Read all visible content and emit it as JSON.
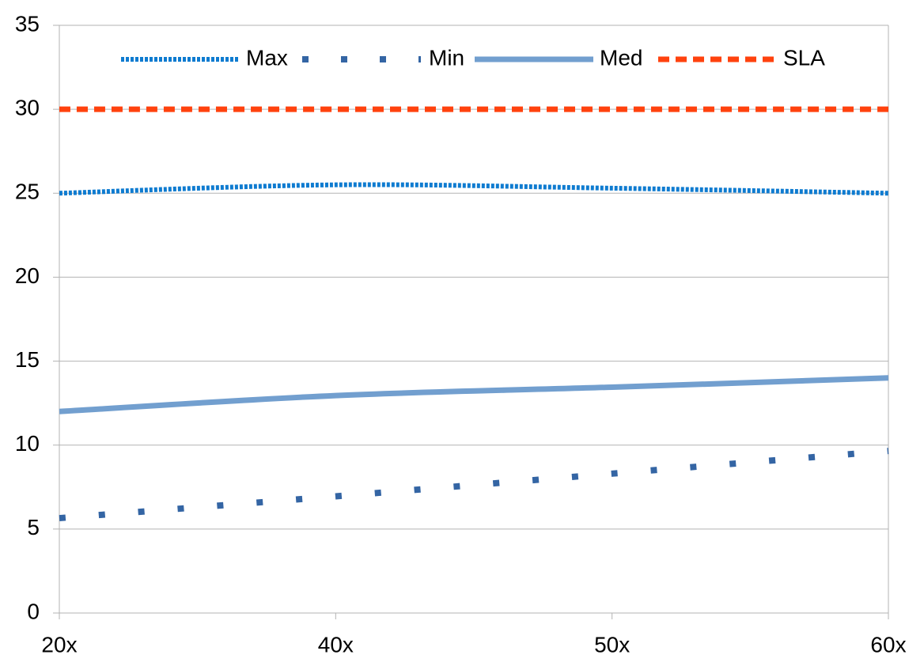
{
  "chart_data": {
    "type": "line",
    "categories": [
      "20x",
      "40x",
      "50x",
      "60x"
    ],
    "series": [
      {
        "name": "Max",
        "color": "#0e7bd0",
        "line_style": "dotted",
        "values": [
          25.0,
          25.5,
          25.3,
          25.0
        ]
      },
      {
        "name": "Min",
        "color": "#3465a4",
        "line_style": "sparse-dot",
        "values": [
          5.65,
          6.95,
          8.3,
          9.65
        ]
      },
      {
        "name": "Med",
        "color": "#729fcf",
        "line_style": "solid",
        "values": [
          12.0,
          12.95,
          13.45,
          14.0
        ]
      },
      {
        "name": "SLA",
        "color": "#ff420e",
        "line_style": "dashed",
        "values": [
          30,
          30,
          30,
          30
        ]
      }
    ],
    "ylim": [
      0,
      35
    ],
    "yticks": [
      0,
      5,
      10,
      15,
      20,
      25,
      30,
      35
    ],
    "grid": true,
    "legend": "top"
  }
}
